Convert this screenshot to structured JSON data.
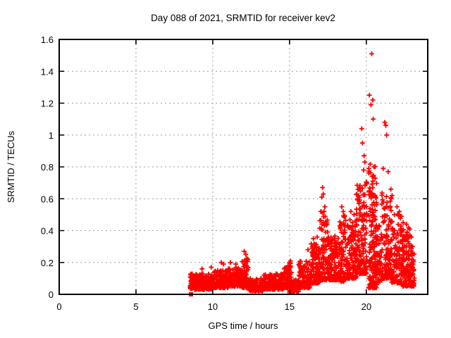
{
  "window": {
    "background_color": "#ffffff"
  },
  "chart_data": {
    "type": "scatter",
    "title": "Day 088 of 2021, SRMTID for receiver kev2",
    "xlabel": "GPS time / hours",
    "ylabel": "SRMTID / TECUs",
    "xlim": [
      0,
      24
    ],
    "ylim": [
      0,
      1.6
    ],
    "xticks": [
      0,
      5,
      10,
      15,
      20
    ],
    "xtick_labels": [
      "0",
      "5",
      "10",
      "15",
      "20"
    ],
    "yticks": [
      0,
      0.2,
      0.4,
      0.6,
      0.8,
      1.0,
      1.2,
      1.4,
      1.6
    ],
    "ytick_labels": [
      "0",
      "0.2",
      "0.4",
      "0.6",
      "0.8",
      "1",
      "1.2",
      "1.4",
      "1.6"
    ],
    "grid": true,
    "grid_style": "dotted",
    "legend": "none",
    "marker": {
      "shape": "plus",
      "color": "#ff0000",
      "size": 7
    },
    "colors": {
      "marker": "#ff0000",
      "grid": "#9e9e9e",
      "axis": "#000000",
      "background": "#ffffff"
    },
    "series_name": "SRMTID",
    "data_time_range_hours": [
      8.5,
      23.15
    ],
    "max_point": {
      "x": 20.35,
      "y": 1.51
    },
    "start_marker": {
      "shape": "filled-square",
      "x": 8.58,
      "y": 0.0
    },
    "bands_format": [
      "x_start_hours",
      "x_end_hours",
      "y_min_TECUs",
      "y_max_TECUs",
      "num_points",
      "low_bias_exponent"
    ],
    "bands": [
      [
        8.52,
        9.0,
        0.03,
        0.13,
        70,
        1.4
      ],
      [
        9.0,
        10.0,
        0.03,
        0.13,
        130,
        1.5
      ],
      [
        10.0,
        11.0,
        0.04,
        0.15,
        130,
        1.5
      ],
      [
        11.0,
        11.9,
        0.05,
        0.17,
        110,
        1.5
      ],
      [
        11.9,
        12.35,
        0.04,
        0.23,
        70,
        1.6
      ],
      [
        12.35,
        13.3,
        0.02,
        0.1,
        130,
        1.3
      ],
      [
        13.3,
        14.6,
        0.03,
        0.13,
        160,
        1.4
      ],
      [
        14.6,
        15.0,
        0.04,
        0.17,
        55,
        1.4
      ],
      [
        14.98,
        15.14,
        0.01,
        0.21,
        40,
        1.6
      ],
      [
        15.1,
        15.6,
        0.015,
        0.09,
        80,
        1.3
      ],
      [
        15.6,
        16.4,
        0.04,
        0.21,
        100,
        1.5
      ],
      [
        16.4,
        16.95,
        0.07,
        0.32,
        100,
        1.8
      ],
      [
        16.95,
        17.5,
        0.09,
        0.52,
        100,
        2.0
      ],
      [
        17.5,
        18.25,
        0.09,
        0.37,
        120,
        1.7
      ],
      [
        18.25,
        18.65,
        0.08,
        0.5,
        70,
        1.9
      ],
      [
        18.65,
        19.35,
        0.1,
        0.47,
        120,
        1.7
      ],
      [
        19.35,
        20.05,
        0.13,
        0.72,
        150,
        2.0
      ],
      [
        20.15,
        20.68,
        0.04,
        0.82,
        160,
        2.1
      ],
      [
        20.68,
        21.02,
        0.08,
        0.45,
        45,
        1.7
      ],
      [
        21.0,
        21.65,
        0.1,
        0.66,
        120,
        1.9
      ],
      [
        21.65,
        22.3,
        0.07,
        0.52,
        100,
        1.8
      ],
      [
        22.3,
        22.95,
        0.05,
        0.43,
        130,
        1.6
      ],
      [
        22.95,
        23.15,
        0.05,
        0.27,
        30,
        1.5
      ]
    ],
    "points": [
      [
        9.3,
        0.16
      ],
      [
        9.9,
        0.17
      ],
      [
        10.55,
        0.2
      ],
      [
        10.7,
        0.19
      ],
      [
        11.15,
        0.2
      ],
      [
        11.5,
        0.19
      ],
      [
        12.05,
        0.27
      ],
      [
        12.15,
        0.25
      ],
      [
        12.22,
        0.22
      ],
      [
        14.9,
        0.18
      ],
      [
        16.2,
        0.28
      ],
      [
        16.55,
        0.35
      ],
      [
        16.8,
        0.36
      ],
      [
        17.05,
        0.52
      ],
      [
        17.1,
        0.61
      ],
      [
        17.15,
        0.67
      ],
      [
        17.2,
        0.63
      ],
      [
        17.3,
        0.55
      ],
      [
        18.4,
        0.55
      ],
      [
        18.5,
        0.52
      ],
      [
        19.0,
        0.52
      ],
      [
        19.2,
        0.5
      ],
      [
        19.5,
        0.62
      ],
      [
        19.7,
        1.04
      ],
      [
        19.75,
        0.95
      ],
      [
        19.82,
        0.78
      ],
      [
        19.85,
        0.87
      ],
      [
        19.9,
        0.83
      ],
      [
        20.2,
        1.25
      ],
      [
        20.3,
        1.19
      ],
      [
        20.35,
        1.51
      ],
      [
        20.42,
        1.22
      ],
      [
        20.45,
        1.1
      ],
      [
        20.5,
        0.8
      ],
      [
        20.38,
        0.74
      ],
      [
        21.1,
        0.79
      ],
      [
        21.2,
        1.08
      ],
      [
        21.27,
        1.06
      ],
      [
        21.32,
        1.0
      ],
      [
        21.42,
        0.77
      ],
      [
        21.6,
        0.66
      ],
      [
        21.68,
        0.62
      ],
      [
        22.0,
        0.55
      ],
      [
        22.12,
        0.5
      ],
      [
        22.4,
        0.45
      ],
      [
        22.62,
        0.44
      ],
      [
        23.0,
        0.3
      ]
    ]
  }
}
